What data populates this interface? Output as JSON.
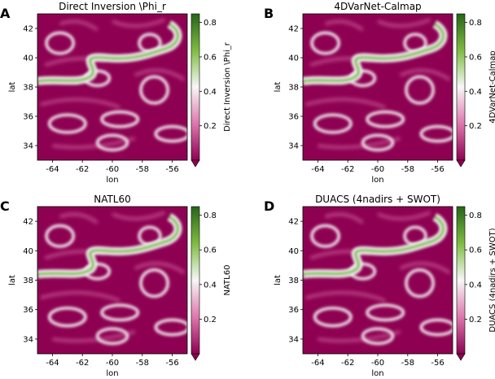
{
  "figure": {
    "colormap": {
      "low": "#8e0152",
      "mid_low": "#de77ae",
      "mid": "#f7f7f7",
      "mid_high": "#7fbc41",
      "high": "#276419"
    }
  },
  "chart_data": [
    {
      "type": "heatmap",
      "panel_letter": "A",
      "title": "Direct Inversion \\Phi_r",
      "xlabel": "lon",
      "ylabel": "lat",
      "xlim": [
        -65,
        -55
      ],
      "ylim": [
        33,
        43
      ],
      "x_ticks": [
        -64,
        -62,
        -60,
        -58,
        -56
      ],
      "x_tick_labels": [
        "-64",
        "-62",
        "-60",
        "-58",
        "-56"
      ],
      "y_ticks": [
        34,
        36,
        38,
        40,
        42
      ],
      "y_tick_labels": [
        "34",
        "36",
        "38",
        "40",
        "42"
      ],
      "colorbar": {
        "label": "Direct Inversion \\Phi_r",
        "range": [
          0,
          0.85
        ],
        "ticks": [
          0.2,
          0.4,
          0.6,
          0.8
        ],
        "tick_labels": [
          "0.2",
          "0.4",
          "0.6",
          "0.8"
        ]
      }
    },
    {
      "type": "heatmap",
      "panel_letter": "B",
      "title": "4DVarNet-Calmap",
      "xlabel": "lon",
      "ylabel": "lat",
      "xlim": [
        -65,
        -55
      ],
      "ylim": [
        33,
        43
      ],
      "x_ticks": [
        -64,
        -62,
        -60,
        -58,
        -56
      ],
      "x_tick_labels": [
        "-64",
        "-62",
        "-60",
        "-58",
        "-56"
      ],
      "y_ticks": [
        34,
        36,
        38,
        40,
        42
      ],
      "y_tick_labels": [
        "34",
        "36",
        "38",
        "40",
        "42"
      ],
      "colorbar": {
        "label": "4DVarNet-Calmap",
        "range": [
          0,
          0.85
        ],
        "ticks": [
          0.2,
          0.4,
          0.6,
          0.8
        ],
        "tick_labels": [
          "0.2",
          "0.4",
          "0.6",
          "0.8"
        ]
      }
    },
    {
      "type": "heatmap",
      "panel_letter": "C",
      "title": "NATL60",
      "xlabel": "lon",
      "ylabel": "lat",
      "xlim": [
        -65,
        -55
      ],
      "ylim": [
        33,
        43
      ],
      "x_ticks": [
        -64,
        -62,
        -60,
        -58,
        -56
      ],
      "x_tick_labels": [
        "-64",
        "-62",
        "-60",
        "-58",
        "-56"
      ],
      "y_ticks": [
        34,
        36,
        38,
        40,
        42
      ],
      "y_tick_labels": [
        "34",
        "36",
        "38",
        "40",
        "42"
      ],
      "colorbar": {
        "label": "NATL60",
        "range": [
          0,
          0.85
        ],
        "ticks": [
          0.2,
          0.4,
          0.6,
          0.8
        ],
        "tick_labels": [
          "0.2",
          "0.4",
          "0.6",
          "0.8"
        ]
      }
    },
    {
      "type": "heatmap",
      "panel_letter": "D",
      "title": "DUACS (4nadirs + SWOT)",
      "xlabel": "lon",
      "ylabel": "lat",
      "xlim": [
        -65,
        -55
      ],
      "ylim": [
        33,
        43
      ],
      "x_ticks": [
        -64,
        -62,
        -60,
        -58,
        -56
      ],
      "x_tick_labels": [
        "-64",
        "-62",
        "-60",
        "-58",
        "-56"
      ],
      "y_ticks": [
        34,
        36,
        38,
        40,
        42
      ],
      "y_tick_labels": [
        "34",
        "36",
        "38",
        "40",
        "42"
      ],
      "colorbar": {
        "label": "DUACS (4nadirs + SWOT)",
        "range": [
          0,
          0.85
        ],
        "ticks": [
          0.2,
          0.4,
          0.6,
          0.8
        ],
        "tick_labels": [
          "0.2",
          "0.4",
          "0.6",
          "0.8"
        ]
      }
    }
  ]
}
